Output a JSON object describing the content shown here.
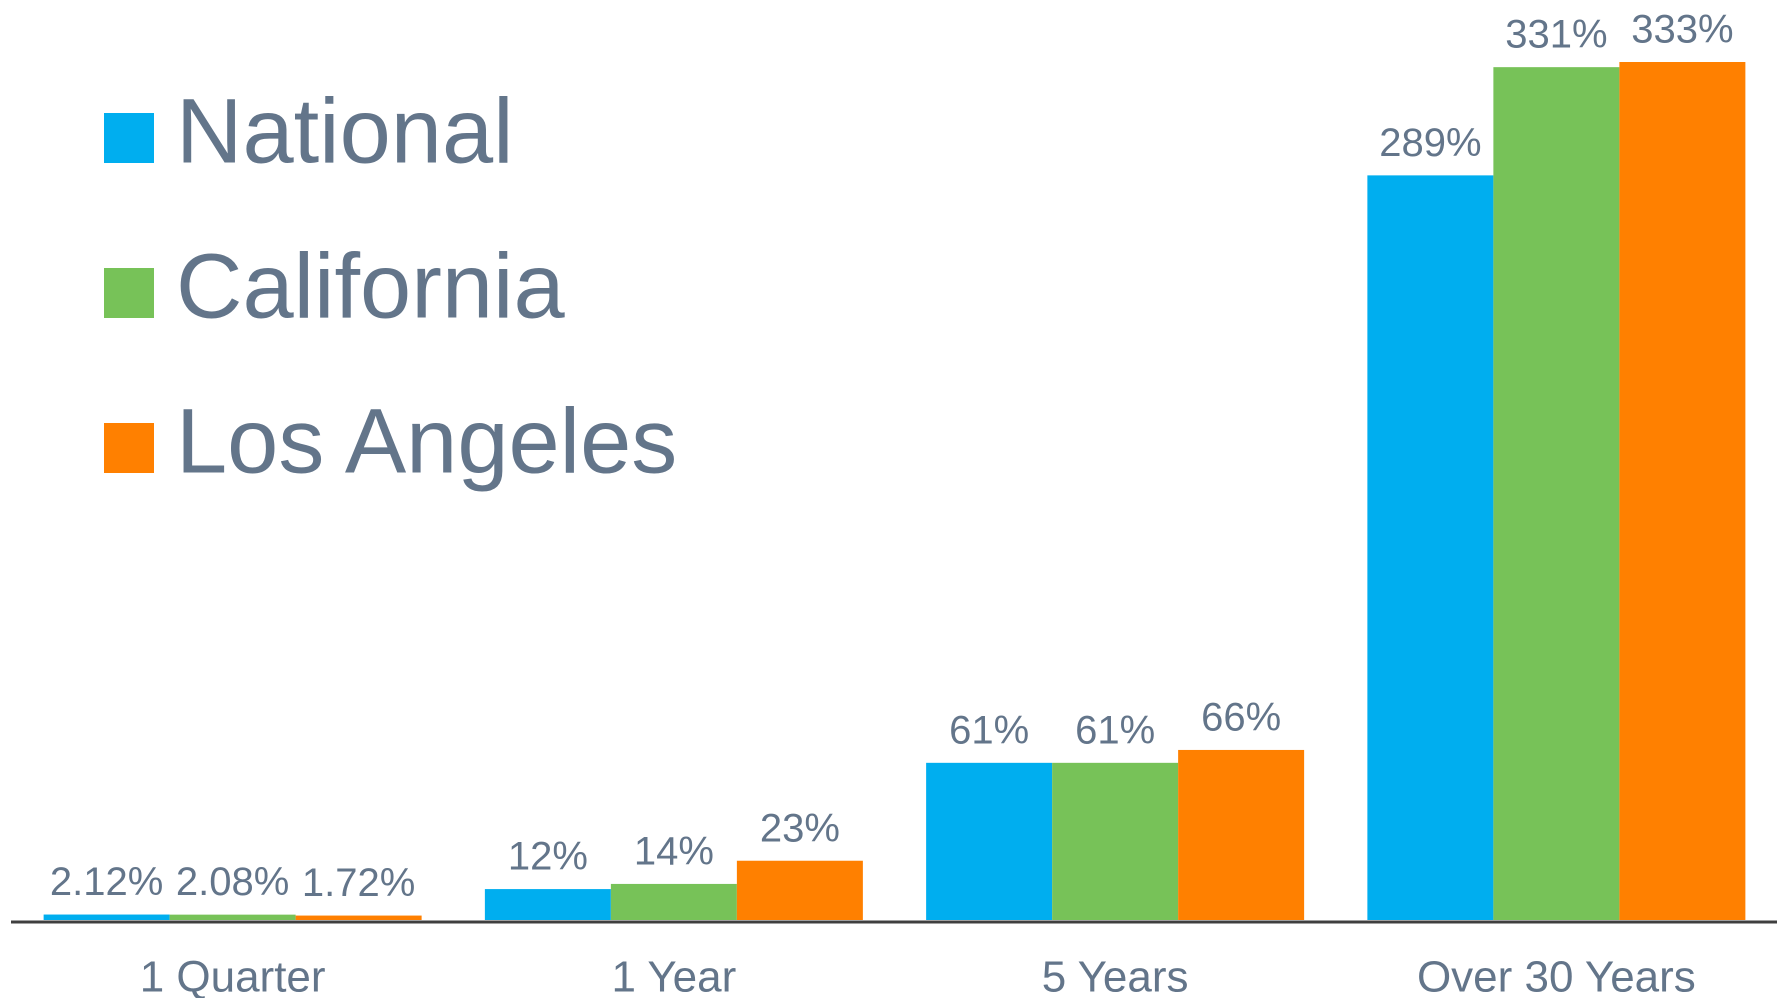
{
  "chart_data": {
    "type": "bar",
    "categories": [
      "1 Quarter",
      "1 Year",
      "5 Years",
      "Over 30 Years"
    ],
    "series": [
      {
        "name": "National",
        "color": "#00aeef",
        "values": [
          2.12,
          12,
          61,
          289
        ],
        "value_labels": [
          "2.12%",
          "12%",
          "61%",
          "289%"
        ]
      },
      {
        "name": "California",
        "color": "#77c258",
        "values": [
          2.08,
          14,
          61,
          331
        ],
        "value_labels": [
          "2.08%",
          "14%",
          "61%",
          "331%"
        ]
      },
      {
        "name": "Los Angeles",
        "color": "#ff8000",
        "values": [
          1.72,
          23,
          66,
          333
        ],
        "value_labels": [
          "1.72%",
          "23%",
          "66%",
          "333%"
        ]
      }
    ],
    "legend": "top-left"
  }
}
